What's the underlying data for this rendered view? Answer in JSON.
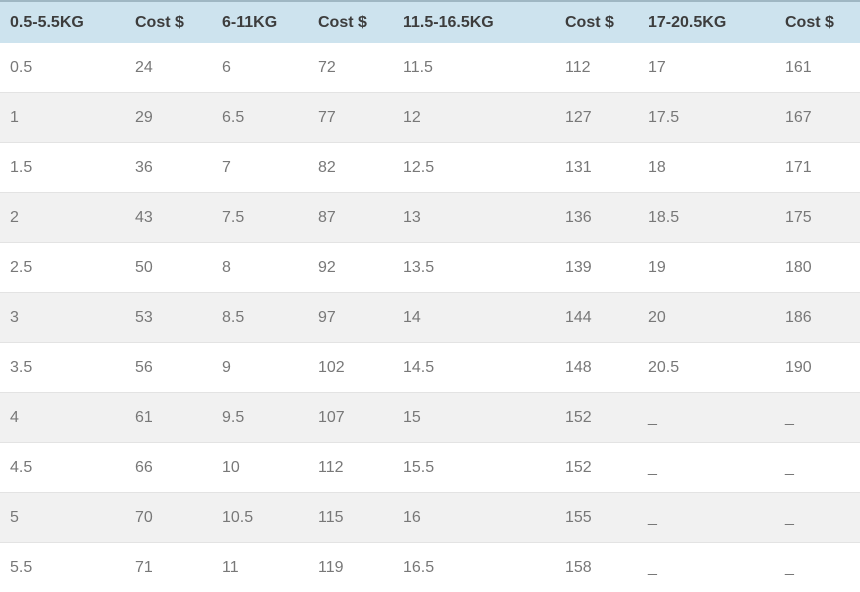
{
  "colors": {
    "header_bg": "#cde3ee",
    "header_top_border": "#9fb7c3",
    "header_text": "#3d3d3d",
    "row_bg": "#ffffff",
    "row_alt_bg": "#f1f1f1",
    "cell_text": "#787878",
    "row_border": "#e3e3e3"
  },
  "chart_data": {
    "type": "table",
    "columns": [
      "0.5-5.5KG",
      "Cost $",
      "6-11KG",
      "Cost $",
      "11.5-16.5KG",
      "Cost $",
      "17-20.5KG",
      "Cost $"
    ],
    "rows": [
      [
        "0.5",
        "24",
        "6",
        "72",
        "11.5",
        "112",
        "17",
        "161"
      ],
      [
        "1",
        "29",
        "6.5",
        "77",
        "12",
        "127",
        "17.5",
        "167"
      ],
      [
        "1.5",
        "36",
        "7",
        "82",
        "12.5",
        "131",
        "18",
        "171"
      ],
      [
        "2",
        "43",
        "7.5",
        "87",
        "13",
        "136",
        "18.5",
        "175"
      ],
      [
        "2.5",
        "50",
        "8",
        "92",
        "13.5",
        "139",
        "19",
        "180"
      ],
      [
        "3",
        "53",
        "8.5",
        "97",
        "14",
        "144",
        "20",
        "186"
      ],
      [
        "3.5",
        "56",
        "9",
        "102",
        "14.5",
        "148",
        "20.5",
        "190"
      ],
      [
        "4",
        "61",
        "9.5",
        "107",
        "15",
        "152",
        "_",
        "_"
      ],
      [
        "4.5",
        "66",
        "10",
        "112",
        "15.5",
        "152",
        "_",
        "_"
      ],
      [
        "5",
        "70",
        "10.5",
        "115",
        "16",
        "155",
        "_",
        "_"
      ],
      [
        "5.5",
        "71",
        "11",
        "119",
        "16.5",
        "158",
        "_",
        "_"
      ]
    ]
  }
}
